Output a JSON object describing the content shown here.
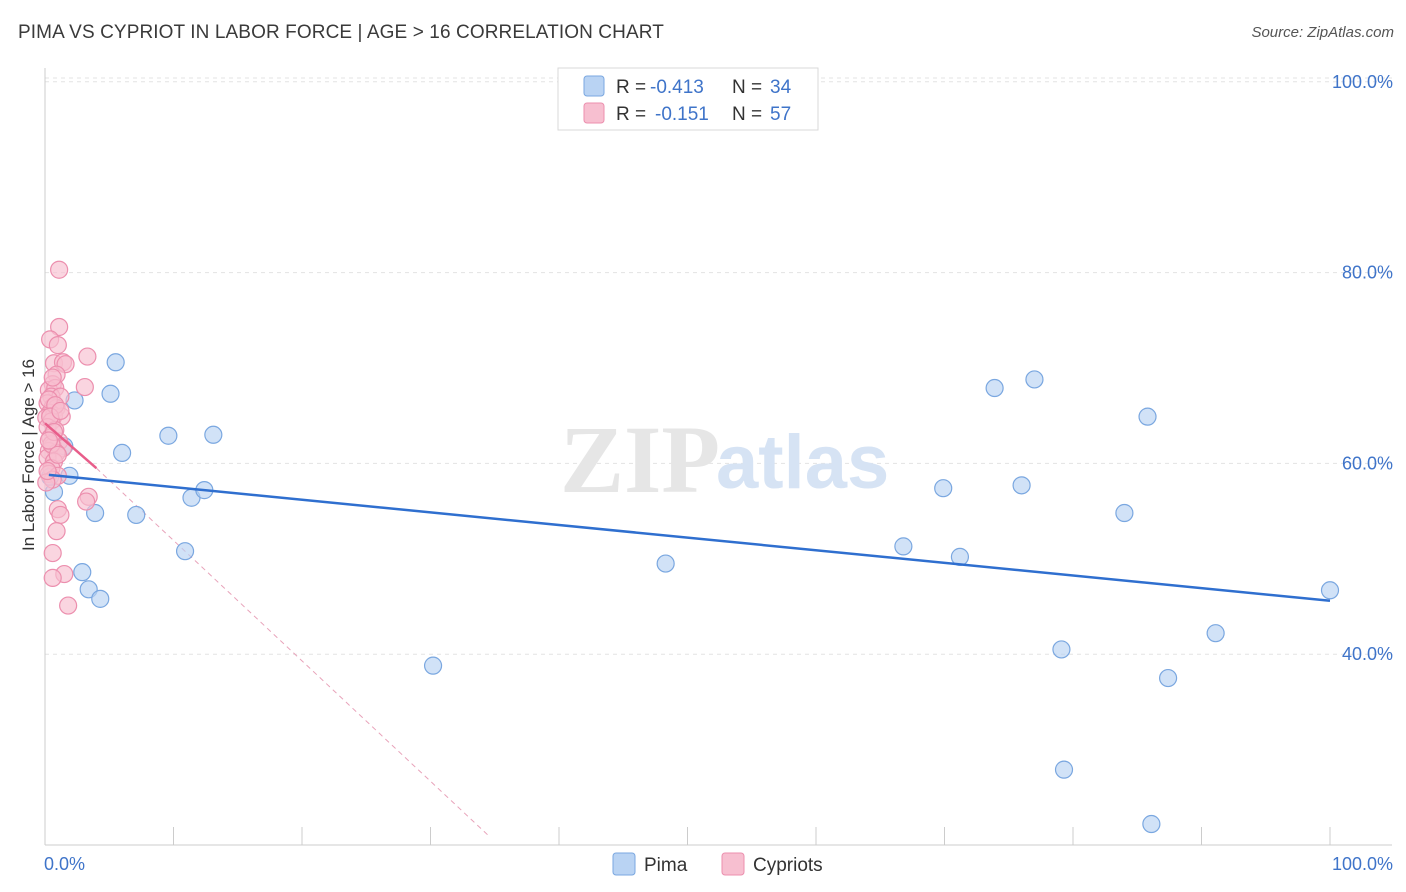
{
  "title": "PIMA VS CYPRIOT IN LABOR FORCE | AGE > 16 CORRELATION CHART",
  "source": "Source: ZipAtlas.com",
  "watermark": {
    "zip": "ZIP",
    "atlas": "atlas"
  },
  "colors": {
    "pima_fill": "#b9d3f3",
    "pima_stroke": "#7aa7e0",
    "pima_line": "#2f6fcf",
    "cyp_fill": "#f7bfd0",
    "cyp_stroke": "#ec8fae",
    "cyp_line": "#e85d8a",
    "tick": "#3f74c9",
    "grid": "#e3e3e3"
  },
  "legend": {
    "rows": [
      {
        "r_label": "R =",
        "r_value": "-0.413",
        "n_label": "N =",
        "n_value": "34"
      },
      {
        "r_label": "R =",
        "r_value": "-0.151",
        "n_label": "N =",
        "n_value": "57"
      }
    ]
  },
  "chart_data": {
    "type": "scatter",
    "xlabel": "",
    "ylabel": "In Labor Force | Age > 16",
    "xlim": [
      0,
      100
    ],
    "ylim": [
      20,
      102
    ],
    "x_tick_labels": [
      "0.0%",
      "100.0%"
    ],
    "y_ticks": [
      40,
      60,
      80,
      100
    ],
    "y_tick_labels": [
      "40.0%",
      "60.0%",
      "80.0%",
      "100.0%"
    ],
    "grid": true,
    "legend_position": "top-center",
    "series": [
      {
        "name": "Pima",
        "trend": [
          [
            0.3,
            58.8
          ],
          [
            100,
            45.6
          ]
        ],
        "points": [
          [
            0.7,
            57.0
          ],
          [
            1.5,
            61.8
          ],
          [
            1.9,
            58.7
          ],
          [
            2.3,
            66.6
          ],
          [
            2.9,
            48.6
          ],
          [
            3.4,
            46.8
          ],
          [
            3.9,
            54.8
          ],
          [
            4.3,
            45.8
          ],
          [
            5.1,
            67.3
          ],
          [
            5.5,
            70.6
          ],
          [
            6.0,
            61.1
          ],
          [
            7.1,
            54.6
          ],
          [
            9.6,
            62.9
          ],
          [
            10.9,
            50.8
          ],
          [
            11.4,
            56.4
          ],
          [
            12.4,
            57.2
          ],
          [
            13.1,
            63.0
          ],
          [
            30.2,
            38.8
          ],
          [
            48.3,
            49.5
          ],
          [
            66.8,
            51.3
          ],
          [
            69.9,
            57.4
          ],
          [
            71.2,
            50.2
          ],
          [
            73.9,
            67.9
          ],
          [
            76.0,
            57.7
          ],
          [
            77.0,
            68.8
          ],
          [
            79.1,
            40.5
          ],
          [
            79.3,
            27.9
          ],
          [
            84.0,
            54.8
          ],
          [
            85.8,
            64.9
          ],
          [
            86.1,
            22.2
          ],
          [
            87.4,
            37.5
          ],
          [
            91.1,
            42.2
          ],
          [
            100.0,
            46.7
          ],
          [
            0.4,
            58.6
          ]
        ]
      },
      {
        "name": "Cypriots",
        "trend": [
          [
            0.0,
            64.2
          ],
          [
            4.0,
            59.5
          ]
        ],
        "trend_ext": [
          [
            4.0,
            59.5
          ],
          [
            34.5,
            21.0
          ]
        ],
        "points": [
          [
            1.1,
            80.3
          ],
          [
            1.1,
            74.3
          ],
          [
            0.4,
            73.0
          ],
          [
            1.0,
            72.4
          ],
          [
            3.3,
            71.2
          ],
          [
            0.7,
            70.5
          ],
          [
            1.4,
            70.6
          ],
          [
            1.6,
            70.4
          ],
          [
            0.9,
            69.3
          ],
          [
            0.6,
            68.3
          ],
          [
            0.3,
            67.7
          ],
          [
            0.8,
            67.9
          ],
          [
            3.1,
            68.0
          ],
          [
            0.5,
            67.0
          ],
          [
            1.2,
            67.0
          ],
          [
            0.2,
            66.3
          ],
          [
            0.6,
            65.9
          ],
          [
            0.9,
            65.8
          ],
          [
            0.4,
            65.3
          ],
          [
            0.7,
            65.0
          ],
          [
            1.3,
            64.9
          ],
          [
            0.1,
            64.8
          ],
          [
            0.5,
            64.4
          ],
          [
            0.2,
            63.8
          ],
          [
            0.8,
            63.5
          ],
          [
            0.4,
            62.7
          ],
          [
            1.1,
            62.3
          ],
          [
            0.6,
            61.8
          ],
          [
            1.4,
            61.6
          ],
          [
            0.3,
            61.3
          ],
          [
            0.9,
            61.1
          ],
          [
            0.2,
            60.6
          ],
          [
            0.7,
            60.2
          ],
          [
            0.5,
            59.5
          ],
          [
            0.3,
            58.9
          ],
          [
            1.0,
            58.7
          ],
          [
            0.6,
            58.3
          ],
          [
            0.1,
            58.0
          ],
          [
            3.4,
            56.5
          ],
          [
            3.2,
            56.0
          ],
          [
            1.0,
            55.2
          ],
          [
            1.2,
            54.6
          ],
          [
            0.9,
            52.9
          ],
          [
            0.6,
            50.6
          ],
          [
            1.5,
            48.4
          ],
          [
            0.6,
            48.0
          ],
          [
            1.8,
            45.1
          ],
          [
            0.3,
            66.7
          ],
          [
            0.8,
            66.1
          ],
          [
            0.5,
            62.0
          ],
          [
            1.0,
            60.9
          ],
          [
            0.2,
            59.2
          ],
          [
            0.4,
            64.9
          ],
          [
            0.7,
            63.3
          ],
          [
            1.2,
            65.5
          ],
          [
            0.6,
            69.0
          ],
          [
            0.3,
            62.4
          ]
        ]
      }
    ]
  }
}
